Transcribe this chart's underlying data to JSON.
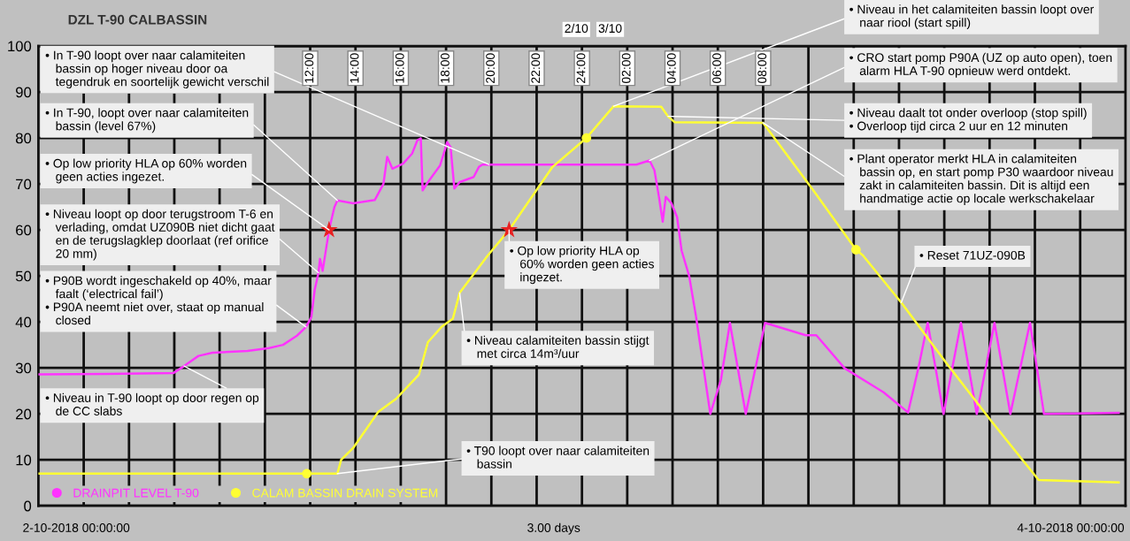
{
  "chart_data": {
    "type": "line",
    "title": "DZL T-90 CALBASSIN",
    "xlim": [
      "2018-10-02T00:00",
      "2018-10-04T00:00"
    ],
    "ylim": [
      0,
      100
    ],
    "xticks": [
      {
        "value": "2018-10-02T02:00",
        "label": null
      },
      {
        "value": "2018-10-02T04:00",
        "label": null
      },
      {
        "value": "2018-10-02T06:00",
        "label": null
      },
      {
        "value": "2018-10-02T08:00",
        "label": null
      },
      {
        "value": "2018-10-02T10:00",
        "label": null
      },
      {
        "value": "2018-10-02T12:00",
        "label": "12:00"
      },
      {
        "value": "2018-10-02T14:00",
        "label": "14:00"
      },
      {
        "value": "2018-10-02T16:00",
        "label": "16:00"
      },
      {
        "value": "2018-10-02T18:00",
        "label": "18:00"
      },
      {
        "value": "2018-10-02T20:00",
        "label": "20:00"
      },
      {
        "value": "2018-10-02T22:00",
        "label": "22:00"
      },
      {
        "value": "2018-10-03T00:00",
        "label": "24:00"
      },
      {
        "value": "2018-10-03T02:00",
        "label": "02:00"
      },
      {
        "value": "2018-10-03T04:00",
        "label": "04:00"
      },
      {
        "value": "2018-10-03T06:00",
        "label": "06:00"
      },
      {
        "value": "2018-10-03T08:00",
        "label": "08:00"
      },
      {
        "value": "2018-10-03T10:00",
        "label": null
      },
      {
        "value": "2018-10-03T12:00",
        "label": null
      },
      {
        "value": "2018-10-03T14:00",
        "label": null
      },
      {
        "value": "2018-10-03T16:00",
        "label": null
      },
      {
        "value": "2018-10-03T18:00",
        "label": null
      },
      {
        "value": "2018-10-03T20:00",
        "label": null
      },
      {
        "value": "2018-10-03T22:00",
        "label": null
      }
    ],
    "yticks": [
      0,
      10,
      20,
      30,
      40,
      50,
      60,
      70,
      80,
      90,
      100
    ],
    "grid": true,
    "legend": "bottom left",
    "line_style": "solid",
    "series": [
      {
        "name": "DRAINPIT LEVEL T-90",
        "color": "#ff33ff",
        "marker": "none",
        "x": [
          "2018-10-02T00:02",
          "2018-10-02T03:00",
          "2018-10-02T05:58",
          "2018-10-02T06:26",
          "2018-10-02T07:04",
          "2018-10-02T07:41",
          "2018-10-02T09:14",
          "2018-10-02T10:11",
          "2018-10-02T10:48",
          "2018-10-02T11:25",
          "2018-10-02T11:49",
          "2018-10-02T12:03",
          "2018-10-02T12:12",
          "2018-10-02T12:22",
          "2018-10-02T12:26",
          "2018-10-02T12:33",
          "2018-10-02T12:50",
          "2018-10-02T13:04",
          "2018-10-02T13:12",
          "2018-10-02T13:54",
          "2018-10-02T14:51",
          "2018-10-02T15:14",
          "2018-10-02T15:24",
          "2018-10-02T15:38",
          "2018-10-02T16:06",
          "2018-10-02T16:30",
          "2018-10-02T16:44",
          "2018-10-02T16:53",
          "2018-10-02T16:58",
          "2018-10-02T17:12",
          "2018-10-02T17:44",
          "2018-10-02T18:03",
          "2018-10-02T18:12",
          "2018-10-02T18:22",
          "2018-10-02T18:36",
          "2018-10-02T19:13",
          "2018-10-02T19:27",
          "2018-10-02T19:36",
          "2018-10-03T02:24",
          "2018-10-03T02:59",
          "2018-10-03T03:12",
          "2018-10-03T03:24",
          "2018-10-03T03:34",
          "2018-10-03T03:42",
          "2018-10-03T03:57",
          "2018-10-03T04:12",
          "2018-10-03T04:24",
          "2018-10-03T04:44",
          "2018-10-03T05:02",
          "2018-10-03T05:40",
          "2018-10-03T06:08",
          "2018-10-03T06:32",
          "2018-10-03T07:14",
          "2018-10-03T08:05",
          "2018-10-03T09:53",
          "2018-10-03T10:21",
          "2018-10-03T11:36",
          "2018-10-03T13:19",
          "2018-10-03T14:24",
          "2018-10-03T14:52",
          "2018-10-03T15:16",
          "2018-10-03T15:58",
          "2018-10-03T16:44",
          "2018-10-03T17:26",
          "2018-10-03T18:13",
          "2018-10-03T18:55",
          "2018-10-03T19:47",
          "2018-10-03T20:24",
          "2018-10-03T23:42"
        ],
        "values": [
          28.6,
          28.7,
          28.9,
          30.4,
          32.6,
          33.3,
          33.7,
          34.3,
          35,
          37,
          38.9,
          41,
          47,
          50.7,
          53.7,
          51.1,
          60,
          64.9,
          66.4,
          65.8,
          66.5,
          70,
          75.9,
          73.3,
          74.4,
          76.6,
          79.5,
          79.9,
          68.6,
          70.4,
          74,
          79.1,
          78,
          69,
          70.4,
          71.5,
          73.7,
          74.2,
          74.2,
          75.1,
          73,
          67.2,
          61.8,
          67.2,
          65.8,
          62.8,
          55.5,
          50,
          41.3,
          20,
          27.3,
          39.8,
          20,
          39.8,
          37.1,
          37.1,
          29.9,
          24.7,
          20.3,
          30.2,
          39.8,
          20,
          39.8,
          20,
          39.8,
          20,
          39.8,
          20,
          20.2
        ]
      },
      {
        "name": "CALAM BASSIN DRAIN SYSTEM",
        "color": "#ffff33",
        "marker": "none",
        "x": [
          "2018-10-02T00:00",
          "2018-10-02T13:12",
          "2018-10-02T13:22",
          "2018-10-02T13:54",
          "2018-10-02T15:00",
          "2018-10-02T15:48",
          "2018-10-02T16:48",
          "2018-10-02T17:12",
          "2018-10-02T17:48",
          "2018-10-02T18:18",
          "2018-10-02T18:36",
          "2018-10-02T19:50",
          "2018-10-02T20:47",
          "2018-10-02T22:42",
          "2018-10-03T00:12",
          "2018-10-03T01:24",
          "2018-10-03T03:30",
          "2018-10-03T03:48",
          "2018-10-03T04:06",
          "2018-10-03T08:00",
          "2018-10-03T10:12",
          "2018-10-03T12:06",
          "2018-10-03T12:24",
          "2018-10-03T14:06",
          "2018-10-03T16:06",
          "2018-10-03T18:04",
          "2018-10-03T20:10",
          "2018-10-03T23:42"
        ],
        "values": [
          7,
          7,
          10,
          12.6,
          20.4,
          23.3,
          28.5,
          35.6,
          38.9,
          40.7,
          46.3,
          54.4,
          60,
          73.7,
          80,
          86.9,
          86.8,
          84.7,
          83.4,
          83.3,
          68.7,
          55.7,
          54.5,
          44.2,
          31,
          18.5,
          5.6,
          5.1
        ]
      },
      {
        "color": "#ffff33",
        "type": "scatter",
        "marker": "circle",
        "x": [
          "2018-10-02T11:51",
          "2018-10-03T00:12",
          "2018-10-03T12:06"
        ],
        "values": [
          7,
          80,
          55.7
        ]
      },
      {
        "color": "#e82020",
        "type": "scatter",
        "marker": "star",
        "x": [
          "2018-10-02T12:50",
          "2018-10-02T20:47"
        ],
        "values": [
          60,
          60
        ]
      }
    ],
    "annotations": [
      {
        "text": "• In T-90 loopt over naar calamiteiten\n   bassin op hoger niveau door oa\n   tegendruk en soortelijk gewicht verschil",
        "x": "2018-10-02T19:54",
        "y": 74.2
      },
      {
        "text": "• In T-90, loopt over naar calamiteiten\n   bassin (level 67%)",
        "x": "2018-10-02T13:12",
        "y": 66.4
      },
      {
        "text": "• Op low priority HLA op 60% worden\n   geen acties ingezet.",
        "x": "2018-10-02T12:50",
        "y": 60
      },
      {
        "text": "• Niveau loopt op door terugstroom T-6 en\n   verlading, omdat UZ090B niet dicht gaat\n   en de terugslagklep doorlaat (ref orifice\n   20 mm)",
        "x": "2018-10-02T12:22",
        "y": 50.7
      },
      {
        "text": "• P90B wordt ingeschakeld op 40%, maar\n   faalt (‘electrical fail’)\n• P90A neemt niet over, staat op manual\n   closed",
        "x": "2018-10-02T11:49",
        "y": 38.9
      },
      {
        "text": "• Niveau in T-90 loopt op door regen op\n   de CC slabs",
        "x": "2018-10-02T06:26",
        "y": 30.4
      },
      {
        "text": "• T90 loopt over naar calamiteiten\n   bassin",
        "x": "2018-10-02T13:12",
        "y": 7
      },
      {
        "text": "• Niveau calamiteiten bassin stijgt\n   met circa 14m³/uur",
        "x": "2018-10-02T18:36",
        "y": 46.3
      },
      {
        "text": "• Op low priority HLA op\n   60% worden geen acties\n   ingezet.",
        "x": "2018-10-02T20:47",
        "y": 60
      },
      {
        "text": "• Niveau in het calamiteiten bassin loopt over\n   naar riool (start spill)",
        "x": "2018-10-03T01:24",
        "y": 86.9
      },
      {
        "text": "• CRO start pomp P90A (UZ op auto open), toen\n   alarm HLA T-90 opnieuw werd ontdekt.",
        "x": "2018-10-03T02:59",
        "y": 75.1
      },
      {
        "text": "• Niveau daalt tot onder overloop (stop spill)\n• Overloop tijd circa 2 uur en 12 minuten",
        "x": "2018-10-03T03:48",
        "y": 84.7
      },
      {
        "text": "• Plant operator merkt HLA in calamiteiten\n   bassin op, en start pomp P30 waardoor niveau\n   zakt in calamiteiten bassin. Dit is altijd een\n   handmatige actie op locale werkschakelaar",
        "x": "2018-10-03T08:00",
        "y": 83.3
      },
      {
        "text": "• Reset 71UZ-090B",
        "x": "2018-10-03T14:06",
        "y": 44.2
      },
      "2/10",
      "3/10",
      "2-10-2018 00:00:00",
      "3.00 days",
      "4-10-2018 00:00:00"
    ]
  }
}
